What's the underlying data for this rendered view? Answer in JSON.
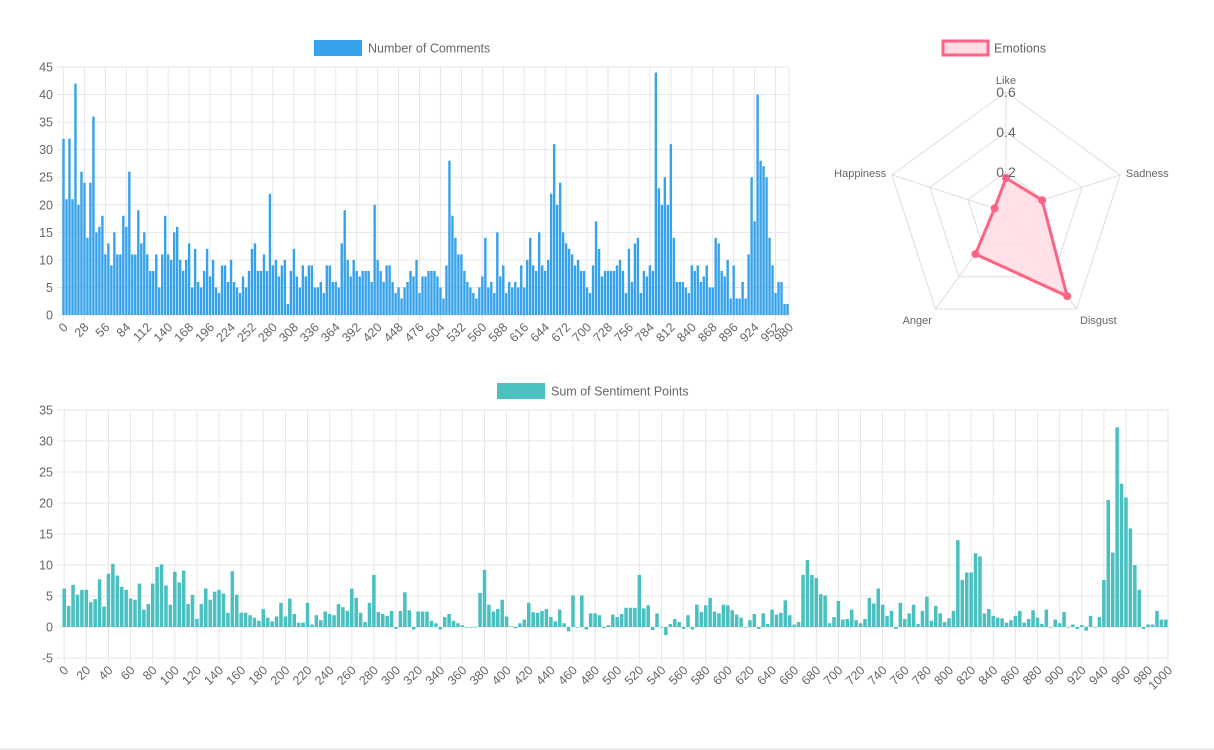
{
  "charts": {
    "comments": {
      "type": "bar",
      "legend_label": "Number of Comments",
      "color": "#36A2EB",
      "ylim": [
        0,
        45
      ],
      "yticks": [
        0,
        5,
        10,
        15,
        20,
        25,
        30,
        35,
        40,
        45
      ],
      "x_start": 0,
      "x_step": 4,
      "x_end": 1000,
      "xtick_step": 28,
      "values": [
        32,
        21,
        32,
        21,
        42,
        20,
        26,
        24,
        14,
        24,
        36,
        15,
        16,
        18,
        11,
        13,
        9,
        15,
        11,
        11,
        18,
        16,
        26,
        11,
        11,
        19,
        13,
        15,
        11,
        8,
        8,
        11,
        5,
        11,
        18,
        11,
        10,
        15,
        16,
        10,
        8,
        10,
        13,
        5,
        12,
        6,
        5,
        8,
        12,
        7,
        10,
        5,
        4,
        9,
        9,
        6,
        10,
        6,
        5,
        4,
        7,
        5,
        8,
        12,
        13,
        8,
        8,
        11,
        8,
        22,
        9,
        10,
        7,
        9,
        10,
        2,
        8,
        12,
        7,
        5,
        9,
        7,
        9,
        9,
        5,
        5,
        6,
        4,
        9,
        9,
        6,
        6,
        5,
        13,
        19,
        10,
        7,
        10,
        8,
        7,
        8,
        8,
        8,
        6,
        20,
        10,
        8,
        6,
        9,
        9,
        6,
        4,
        5,
        3,
        5,
        6,
        8,
        7,
        10,
        4,
        7,
        7,
        8,
        8,
        8,
        7,
        5,
        3,
        9,
        28,
        18,
        14,
        11,
        11,
        8,
        6,
        5,
        4,
        3,
        5,
        7,
        14,
        5,
        6,
        4,
        15,
        7,
        9,
        4,
        6,
        5,
        6,
        5,
        9,
        5,
        10,
        14,
        9,
        8,
        15,
        9,
        8,
        10,
        22,
        31,
        20,
        24,
        15,
        13,
        12,
        11,
        9,
        10,
        8,
        8,
        5,
        4,
        9,
        17,
        12,
        7,
        8,
        8,
        8,
        8,
        9,
        10,
        8,
        4,
        12,
        6,
        13,
        14,
        4,
        8,
        7,
        9,
        8,
        44,
        23,
        20,
        25,
        20,
        31,
        14,
        6,
        6,
        6,
        5,
        4,
        9,
        8,
        9,
        6,
        7,
        9,
        5,
        5,
        14,
        13,
        8,
        7,
        10,
        3,
        9,
        3,
        3,
        6,
        3,
        11,
        25,
        17,
        40,
        28,
        27,
        25,
        14,
        9,
        4,
        6,
        6,
        2,
        2
      ]
    },
    "emotions": {
      "type": "radar",
      "legend_label": "Emotions",
      "border_color": "#FF6384",
      "fill_color": "#FFDCE3",
      "labels": [
        "Like",
        "Sadness",
        "Disgust",
        "Anger",
        "Happiness"
      ],
      "values": [
        0.17,
        0.19,
        0.52,
        0.26,
        0.06
      ],
      "r_max": 0.6,
      "ticks": [
        0.2,
        0.4,
        0.6
      ],
      "tick_labels": [
        "0.2",
        "0.4",
        "0.6"
      ]
    },
    "sentiment": {
      "type": "bar",
      "legend_label": "Sum of Sentiment Points",
      "color": "#4BC0C0",
      "ylim": [
        -5,
        35
      ],
      "yticks": [
        -5,
        0,
        5,
        10,
        15,
        20,
        25,
        30,
        35
      ],
      "x_start": 0,
      "x_step": 4,
      "x_end": 1000,
      "xtick_step": 20,
      "values": [
        6.2,
        3.4,
        6.8,
        5.2,
        6,
        6,
        4,
        4.5,
        7.7,
        3.3,
        8.6,
        10.2,
        8.3,
        6.5,
        6,
        4.6,
        4.4,
        7,
        2.8,
        3.7,
        7,
        9.7,
        10.1,
        6.7,
        3.6,
        8.9,
        7.2,
        9.1,
        3.7,
        5.2,
        1.3,
        3.7,
        6.2,
        4.4,
        5.7,
        6,
        5.4,
        2.3,
        9,
        5.2,
        2.3,
        2.3,
        1.9,
        1.5,
        1,
        2.9,
        1.5,
        0.9,
        1.7,
        3.9,
        1.7,
        4.6,
        2.1,
        0.7,
        0.7,
        3.9,
        0.4,
        1.9,
        1.1,
        2.5,
        2.1,
        1.9,
        3.7,
        3.2,
        2.6,
        6.2,
        4.7,
        2.3,
        0.8,
        3.9,
        8.4,
        2.4,
        2.1,
        1.8,
        2.6,
        -0.3,
        2.6,
        5.6,
        2.7,
        -0.4,
        2.5,
        2.5,
        2.5,
        1,
        0.6,
        -0.4,
        1.6,
        2.1,
        1,
        0.6,
        0.3,
        0,
        0,
        0,
        5.5,
        9.2,
        3.6,
        2.5,
        2.9,
        4.4,
        1.7,
        0.1,
        -0.2,
        0.6,
        1.2,
        3.9,
        2.4,
        2.3,
        2.6,
        2.9,
        1.6,
        0.9,
        2.8,
        0.6,
        -0.7,
        5.1,
        0,
        5.1,
        -0.4,
        2.2,
        2.2,
        1.9,
        -0.2,
        0.3,
        2,
        1.6,
        2.1,
        3.1,
        3.1,
        3.1,
        8.4,
        3,
        3.5,
        -0.5,
        2.2,
        -0.1,
        -1.3,
        0.5,
        1.3,
        0.8,
        -0.3,
        1.9,
        -0.4,
        3.6,
        2.4,
        3.5,
        4.7,
        2.5,
        2.2,
        3.6,
        3.5,
        2.7,
        2,
        1.5,
        0,
        1.1,
        2.1,
        -0.3,
        2.2,
        0.5,
        2.8,
        2,
        2.3,
        4.3,
        1.9,
        0.4,
        0.8,
        8.4,
        10.8,
        8.4,
        7.9,
        5.3,
        5.1,
        0.6,
        1.6,
        4.2,
        1.2,
        1.3,
        2.8,
        1.1,
        0.6,
        1.3,
        4.7,
        3.8,
        6.2,
        3.6,
        1.8,
        2.6,
        -0.3,
        3.9,
        1.3,
        2.2,
        3.6,
        0.5,
        2.6,
        4.9,
        1,
        3.4,
        2.2,
        0.8,
        1.4,
        2.6,
        14,
        7.6,
        8.8,
        8.8,
        11.9,
        11.4,
        2.2,
        2.9,
        1.8,
        1.5,
        1.4,
        0.7,
        1.1,
        1.8,
        2.6,
        0.7,
        1.3,
        2.7,
        1.5,
        0.5,
        2.8,
        0,
        1.2,
        0.6,
        2.4,
        0,
        0.4,
        -0.3,
        0.3,
        -0.6,
        1.8,
        0,
        1.6,
        7.6,
        20.5,
        12,
        32.2,
        23.1,
        20.9,
        15.9,
        10,
        6,
        -0.3,
        0.4,
        0.4,
        2.6,
        1.2,
        1.2
      ]
    }
  }
}
